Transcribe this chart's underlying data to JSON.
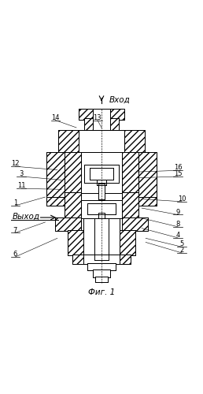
{
  "title": "Фиг. 1",
  "inlet_label": "Вход",
  "outlet_label": "Выход",
  "bg_color": "#ffffff",
  "line_color": "#000000",
  "labels_data": {
    "1": [
      0.07,
      0.47,
      0.22,
      0.5
    ],
    "2": [
      0.9,
      0.235,
      0.72,
      0.275
    ],
    "3": [
      0.1,
      0.615,
      0.3,
      0.585
    ],
    "4": [
      0.88,
      0.31,
      0.7,
      0.345
    ],
    "5": [
      0.9,
      0.265,
      0.72,
      0.295
    ],
    "6": [
      0.07,
      0.215,
      0.28,
      0.295
    ],
    "7": [
      0.07,
      0.335,
      0.22,
      0.375
    ],
    "8": [
      0.88,
      0.365,
      0.7,
      0.395
    ],
    "9": [
      0.88,
      0.425,
      0.7,
      0.445
    ],
    "10": [
      0.9,
      0.49,
      0.7,
      0.49
    ],
    "11": [
      0.1,
      0.555,
      0.3,
      0.538
    ],
    "12": [
      0.07,
      0.665,
      0.28,
      0.635
    ],
    "13": [
      0.48,
      0.895,
      0.5,
      0.845
    ],
    "14": [
      0.27,
      0.895,
      0.375,
      0.845
    ],
    "15": [
      0.88,
      0.615,
      0.68,
      0.595
    ],
    "16": [
      0.88,
      0.645,
      0.68,
      0.625
    ]
  }
}
